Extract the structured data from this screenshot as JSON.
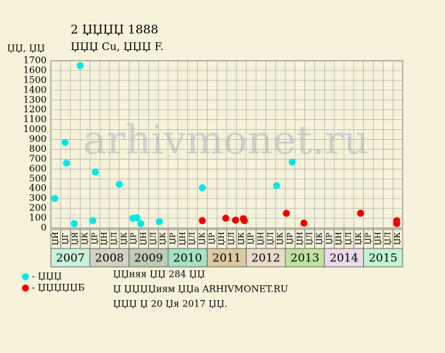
{
  "chart_data": {
    "type": "scatter",
    "title": "2 ЏЏЏЏ 1888",
    "subtitle": "ЏЏЏ Cu, ЏЏЏ F.",
    "y_label": "ЏЏ, ЏЏ",
    "watermark": "arhivmonet.ru",
    "xlim": [
      0,
      36
    ],
    "ylim": [
      0,
      1700
    ],
    "yticks": [
      0,
      100,
      200,
      300,
      400,
      500,
      600,
      700,
      800,
      900,
      1000,
      1100,
      1200,
      1300,
      1400,
      1500,
      1600,
      1700
    ],
    "grid": true,
    "categories": [
      "ЏЙ",
      "ЏГ",
      "ЏЯ",
      "ЏК",
      "ЏР",
      "ЏН",
      "ЏЛ",
      "ЏК",
      "ЏР",
      "ЏН",
      "ЏЛ",
      "ЏК",
      "ЏР",
      "ЏН",
      "ЏЛ",
      "ЏК",
      "ЏР",
      "ЏН",
      "ЏЛ",
      "ЏК",
      "ЏР",
      "ЏН",
      "ЏЛ",
      "ЏК",
      "ЏР",
      "ЏН",
      "ЏЛ",
      "ЏК",
      "ЏР",
      "ЏН",
      "ЏЛ",
      "ЏК",
      "ЏР",
      "ЏН",
      "ЏЛ",
      "ЏК"
    ],
    "years": [
      "2007",
      "2008",
      "2009",
      "2010",
      "2011",
      "2012",
      "2013",
      "2014",
      "2015"
    ],
    "year_colors": [
      "#c8f2da",
      "#d2d2c2",
      "#bccdb4",
      "#a4e2c4",
      "#dac9a2",
      "#e9ddc9",
      "#c2e2a2",
      "#eadbea",
      "#c4f2d2"
    ],
    "series": [
      {
        "name": "- ЏЏЏ",
        "color": "#00e8e8",
        "x": [
          0.4,
          1.45,
          1.6,
          2.4,
          3.0,
          4.3,
          4.55,
          7.0,
          8.4,
          8.8,
          9.2,
          11.1,
          15.5,
          23.1,
          24.7
        ],
        "values": [
          300,
          870,
          660,
          45,
          1650,
          75,
          570,
          445,
          100,
          105,
          45,
          65,
          410,
          430,
          670
        ]
      },
      {
        "name": "- ЏЏЏЏЏБ",
        "color": "#ee0000",
        "x": [
          15.5,
          17.9,
          18.9,
          19.7,
          19.8,
          24.1,
          25.9,
          31.7,
          35.4,
          35.4
        ],
        "values": [
          75,
          100,
          80,
          95,
          75,
          150,
          50,
          150,
          75,
          45
        ]
      }
    ],
    "notes": [
      "ЏЏняя ЏЏ 284 ЏЏ",
      "Џ ЏЏЏЏиям ЏЏа ARHIVMONET.RU",
      "ЏЏЏ Џ 20 Џя 2017 ЏЏ."
    ]
  }
}
